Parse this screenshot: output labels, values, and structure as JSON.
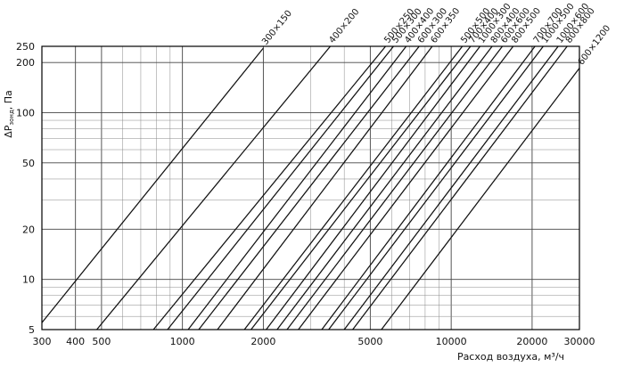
{
  "chart_data": {
    "type": "line",
    "x_scale": "log",
    "y_scale": "log",
    "xlim": [
      300,
      30000
    ],
    "ylim": [
      5,
      250
    ],
    "grid": true,
    "xlabel": "Расход воздуха, м³/ч",
    "ylabel": "ΔP",
    "ylabel_sub": "зонд",
    "ylabel_unit": ", Па",
    "x_ticks": [
      300,
      400,
      500,
      1000,
      2000,
      5000,
      10000,
      20000,
      30000
    ],
    "x_tick_labels": [
      "300",
      "400",
      "500",
      "1000",
      "2000",
      "5000",
      "10000",
      "20000",
      "30000"
    ],
    "y_ticks": [
      5,
      10,
      20,
      50,
      100,
      200,
      250
    ],
    "y_tick_labels": [
      "5",
      "10",
      "20",
      "50",
      "100",
      "200",
      "250"
    ],
    "series": [
      {
        "name": "300×150",
        "x": [
          300,
          2000
        ],
        "y": [
          5.5,
          244
        ]
      },
      {
        "name": "400×200",
        "x": [
          480,
          3550
        ],
        "y": [
          5,
          250
        ]
      },
      {
        "name": "500×250",
        "x": [
          780,
          5700
        ],
        "y": [
          5,
          250
        ]
      },
      {
        "name": "500×300",
        "x": [
          880,
          6100
        ],
        "y": [
          5,
          250
        ]
      },
      {
        "name": "400×400",
        "x": [
          1050,
          6800
        ],
        "y": [
          5,
          250
        ]
      },
      {
        "name": "600×300",
        "x": [
          1150,
          7600
        ],
        "y": [
          5,
          250
        ]
      },
      {
        "name": "600×350",
        "x": [
          1350,
          8500
        ],
        "y": [
          5,
          250
        ]
      },
      {
        "name": "500×500",
        "x": [
          1700,
          11000
        ],
        "y": [
          5,
          250
        ]
      },
      {
        "name": "700×400",
        "x": [
          1800,
          11800
        ],
        "y": [
          5,
          250
        ]
      },
      {
        "name": "1000×300",
        "x": [
          2050,
          12800
        ],
        "y": [
          5,
          250
        ]
      },
      {
        "name": "800×400",
        "x": [
          2250,
          14200
        ],
        "y": [
          5,
          250
        ]
      },
      {
        "name": "600×600",
        "x": [
          2450,
          15500
        ],
        "y": [
          5,
          250
        ]
      },
      {
        "name": "800×500",
        "x": [
          2700,
          17000
        ],
        "y": [
          5,
          250
        ]
      },
      {
        "name": "700×700",
        "x": [
          3300,
          20500
        ],
        "y": [
          5,
          250
        ]
      },
      {
        "name": "1000×500",
        "x": [
          3500,
          22000
        ],
        "y": [
          5,
          250
        ]
      },
      {
        "name": "1000×600",
        "x": [
          4000,
          25000
        ],
        "y": [
          5,
          250
        ]
      },
      {
        "name": "800×800",
        "x": [
          4300,
          27000
        ],
        "y": [
          5,
          250
        ]
      },
      {
        "name": "600×1200",
        "x": [
          5500,
          30000
        ],
        "y": [
          5,
          185
        ]
      }
    ]
  }
}
